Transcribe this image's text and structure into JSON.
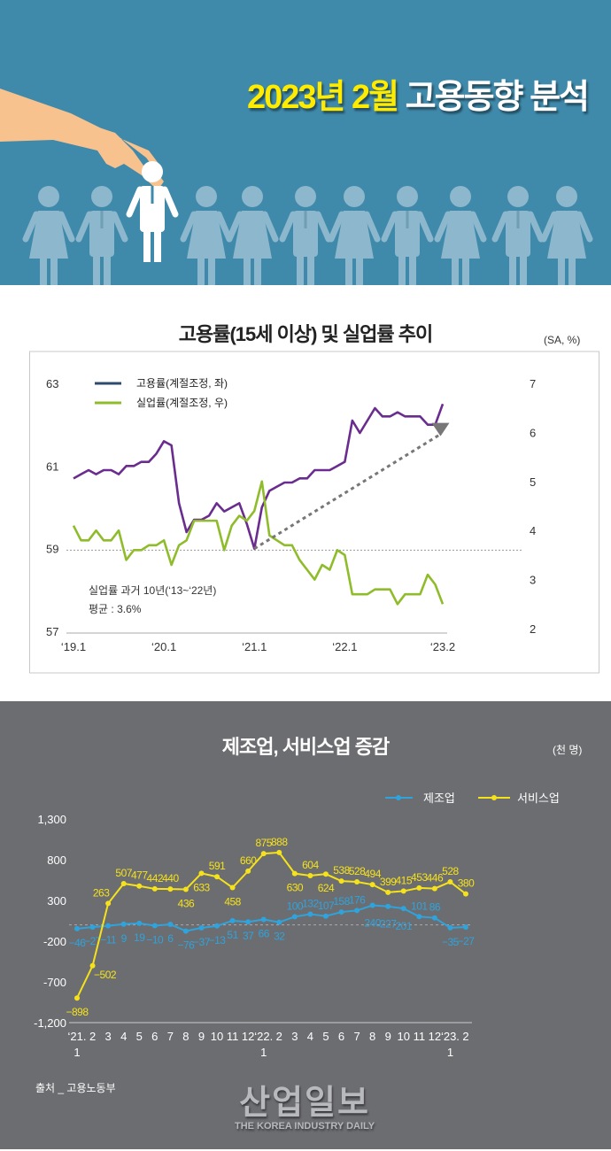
{
  "header": {
    "title_highlight": "2023년 2월",
    "title_rest": "고용동향 분석"
  },
  "colors": {
    "header_bg": "#3f89aa",
    "employment": "#6a2c8e",
    "employment_legend": "#2e4a6e",
    "unemployment": "#8fbc2a",
    "manufacturing": "#2fa3dc",
    "services": "#f5e21a",
    "dark_bg": "#6c6d71"
  },
  "chart_data": [
    {
      "type": "line",
      "title": "고용률(15세 이상) 및 실업률 추이",
      "unit": "(SA, %)",
      "x_ticks": [
        "‘19.1",
        "‘20.1",
        "‘21.1",
        "‘22.1",
        "‘23.2"
      ],
      "x_range": [
        "2019.1",
        "2023.2"
      ],
      "y_left": {
        "ticks": [
          "63",
          "61",
          "59",
          "57"
        ],
        "range": [
          57,
          63
        ]
      },
      "y_right": {
        "ticks": [
          "7",
          "6",
          "5",
          "4",
          "3",
          "2"
        ],
        "range": [
          2,
          7
        ]
      },
      "series": [
        {
          "name": "고용률(계절조정, 좌)",
          "axis": "left",
          "values": [
            60.7,
            60.8,
            60.9,
            60.8,
            60.9,
            60.9,
            60.8,
            61.0,
            61.0,
            61.1,
            61.1,
            61.3,
            61.6,
            61.5,
            60.1,
            59.4,
            59.7,
            59.7,
            59.8,
            60.1,
            59.9,
            60.0,
            60.1,
            59.6,
            59.0,
            60.0,
            60.4,
            60.5,
            60.6,
            60.6,
            60.7,
            60.7,
            60.9,
            60.9,
            60.9,
            61.0,
            61.1,
            62.1,
            61.8,
            62.1,
            62.4,
            62.2,
            62.2,
            62.3,
            62.2,
            62.2,
            62.2,
            62.0,
            62.0,
            62.5
          ]
        },
        {
          "name": "실업률(계절조정, 우)",
          "axis": "right",
          "values": [
            4.1,
            3.8,
            3.8,
            4.0,
            3.8,
            3.8,
            4.0,
            3.4,
            3.6,
            3.6,
            3.7,
            3.7,
            3.8,
            3.3,
            3.7,
            3.8,
            4.2,
            4.2,
            4.2,
            4.2,
            3.6,
            4.1,
            4.3,
            4.2,
            4.4,
            5.0,
            3.9,
            3.8,
            3.7,
            3.7,
            3.4,
            3.2,
            3.0,
            3.3,
            3.2,
            3.6,
            3.5,
            2.7,
            2.7,
            2.7,
            2.8,
            2.8,
            2.8,
            2.5,
            2.7,
            2.7,
            2.7,
            3.1,
            2.9,
            2.5
          ]
        }
      ],
      "reference_line": {
        "value": 3.6,
        "axis": "right"
      },
      "annotation": {
        "line1": "실업률 과거 10년(‘13~‘22년)",
        "line2": "평균 : 3.6%"
      },
      "legend_position": "top-left"
    },
    {
      "type": "line",
      "title": "제조업, 서비스업 증감",
      "unit": "(천 명)",
      "categories": [
        "‘21.\n1",
        "2",
        "3",
        "4",
        "5",
        "6",
        "7",
        "8",
        "9",
        "10",
        "11",
        "12",
        "‘22.\n1",
        "2",
        "3",
        "4",
        "5",
        "6",
        "7",
        "8",
        "9",
        "10",
        "11",
        "12",
        "‘23.\n1",
        "2"
      ],
      "y_ticks": [
        "1,300",
        "800",
        "300",
        "-200",
        "-700",
        "-1,200"
      ],
      "ylim": [
        -1200,
        1300
      ],
      "series": [
        {
          "name": "제조업",
          "values": [
            -46,
            -27,
            -11,
            9,
            19,
            -10,
            6,
            -76,
            -37,
            -13,
            51,
            37,
            66,
            32,
            100,
            132,
            107,
            158,
            176,
            240,
            227,
            201,
            101,
            86,
            -35,
            -27
          ]
        },
        {
          "name": "서비스업",
          "values": [
            -898,
            -502,
            263,
            507,
            477,
            442,
            440,
            436,
            633,
            591,
            458,
            660,
            875,
            888,
            630,
            604,
            624,
            538,
            528,
            494,
            399,
            415,
            453,
            446,
            528,
            380
          ]
        }
      ],
      "legend_position": "top-right"
    }
  ],
  "footer": {
    "source": "출처 _ 고용노동부",
    "logo_main": "산업일보",
    "logo_sub": "THE KOREA INDUSTRY DAILY"
  }
}
